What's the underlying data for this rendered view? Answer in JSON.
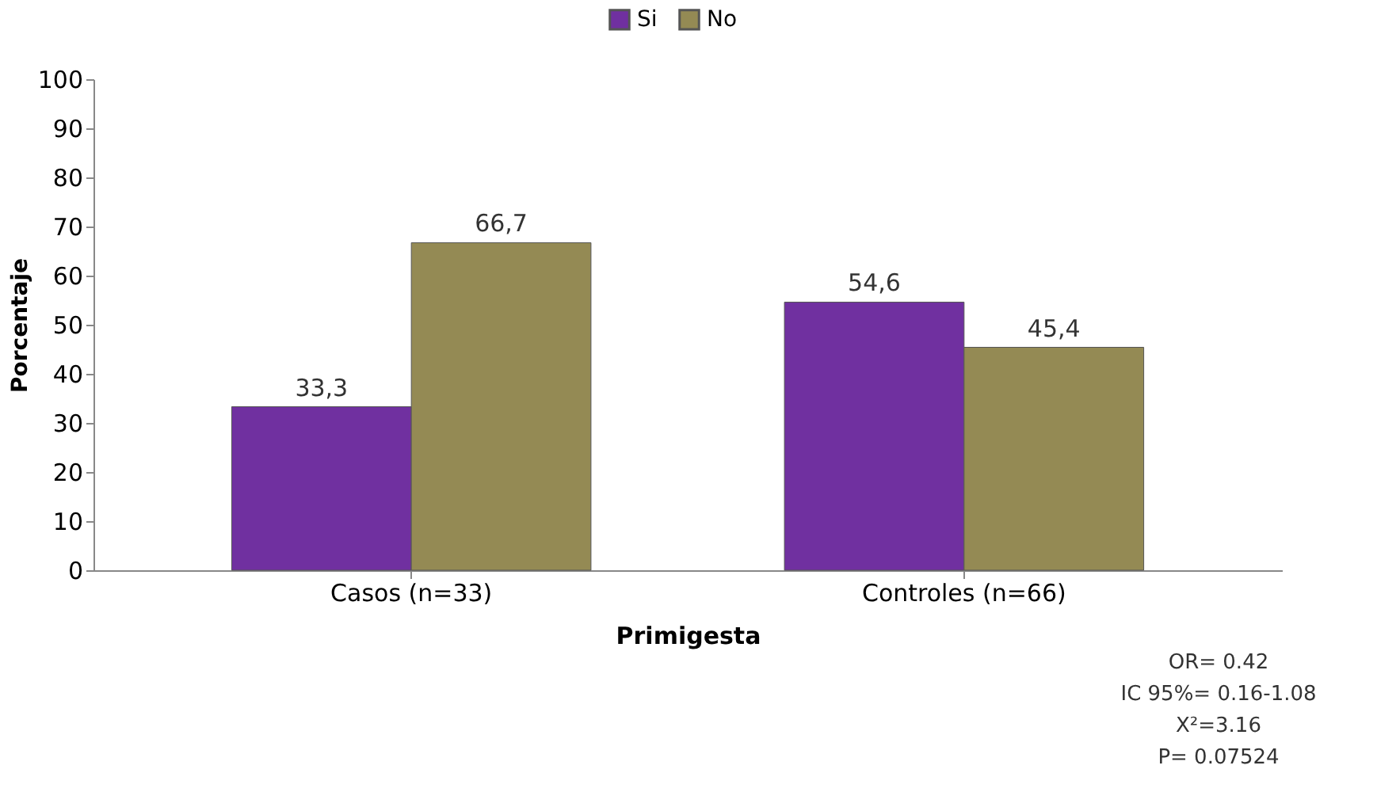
{
  "chart_data": {
    "type": "bar",
    "xlabel": "Primigesta",
    "ylabel": "Porcentaje",
    "categories": [
      "Casos (n=33)",
      "Controles (n=66)"
    ],
    "series": [
      {
        "name": "Si",
        "color": "#7030a0",
        "values": [
          33.3,
          54.6
        ],
        "value_labels": [
          "33,3",
          "54,6"
        ]
      },
      {
        "name": "No",
        "color": "#948a54",
        "values": [
          66.7,
          45.4
        ],
        "value_labels": [
          "66,7",
          "45,4"
        ]
      }
    ],
    "ylim": [
      0,
      100
    ],
    "yticks": [
      0,
      10,
      20,
      30,
      40,
      50,
      60,
      70,
      80,
      90,
      100
    ],
    "grid": false,
    "legend": "top",
    "annotations": [
      "OR= 0.42",
      "IC 95%= 0.16-1.08",
      "X²=3.16",
      "P= 0.07524"
    ]
  }
}
